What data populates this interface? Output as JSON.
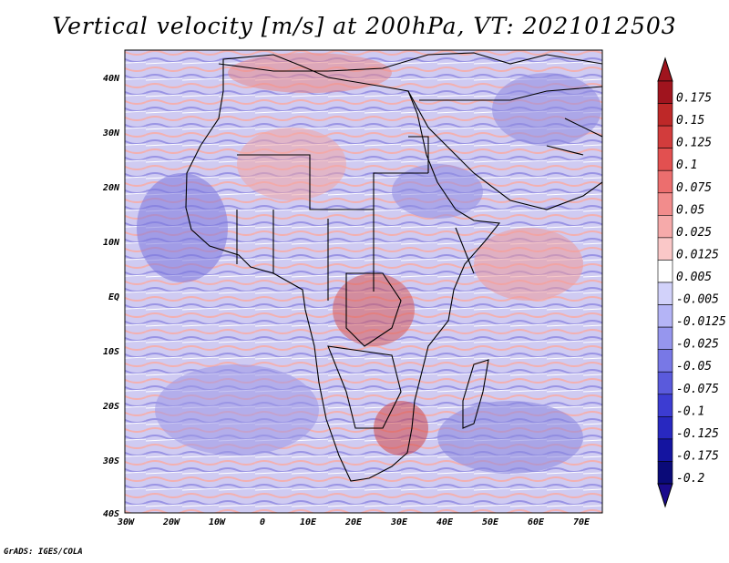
{
  "title": "Vertical velocity [m/s] at 200hPa, VT: 2021012503",
  "credit": "GrADS: IGES/COLA",
  "map": {
    "lat_labels": [
      "40N",
      "30N",
      "20N",
      "10N",
      "EQ",
      "10S",
      "20S",
      "30S",
      "40S"
    ],
    "lon_labels": [
      "30W",
      "20W",
      "10W",
      "0",
      "10E",
      "20E",
      "30E",
      "40E",
      "50E",
      "60E",
      "70E"
    ],
    "field": "vertical velocity",
    "units": "m/s",
    "level": "200hPa",
    "valid_time": "2021012503"
  },
  "colorbar": {
    "labels": [
      "0.175",
      "0.15",
      "0.125",
      "0.1",
      "0.075",
      "0.05",
      "0.025",
      "0.0125",
      "0.005",
      "-0.005",
      "-0.0125",
      "-0.025",
      "-0.05",
      "-0.075",
      "-0.1",
      "-0.125",
      "-0.175",
      "-0.2"
    ],
    "colors": [
      "#a0141e",
      "#be2828",
      "#d23c3c",
      "#e25050",
      "#ec6e6e",
      "#f28c8c",
      "#f6aaaa",
      "#fac8c8",
      "#ffffff",
      "#d2d2fa",
      "#b4b4f6",
      "#9696ee",
      "#7878e6",
      "#5a5adc",
      "#3c3cd2",
      "#2828c0",
      "#1414a0",
      "#0a0a78"
    ]
  },
  "colors": {
    "top_arrow": "#a0141e",
    "bottom_arrow": "#1a0a8c",
    "border": "#000000"
  }
}
